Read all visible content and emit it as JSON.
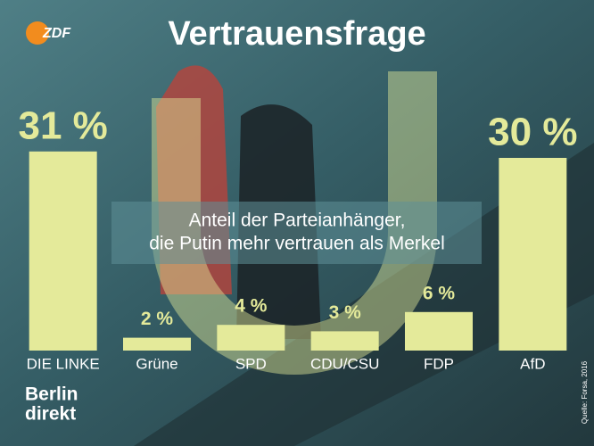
{
  "logo": "ZDF",
  "brand": [
    "Berlin",
    "direkt"
  ],
  "source": "Quelle: Forsa, 2016",
  "chart_data": {
    "type": "bar",
    "title": "Vertrauensfrage",
    "subtitle": [
      "Anteil der Parteianhänger,",
      "die Putin mehr vertrauen als Merkel"
    ],
    "categories": [
      "DIE LINKE",
      "Grüne",
      "SPD",
      "CDU/CSU",
      "FDP",
      "AfD"
    ],
    "values": [
      31,
      2,
      4,
      3,
      6,
      30
    ],
    "value_labels": [
      "31 %",
      "2 %",
      "4 %",
      "3 %",
      "6 %",
      "30 %"
    ],
    "color": "#e4ea9a"
  }
}
